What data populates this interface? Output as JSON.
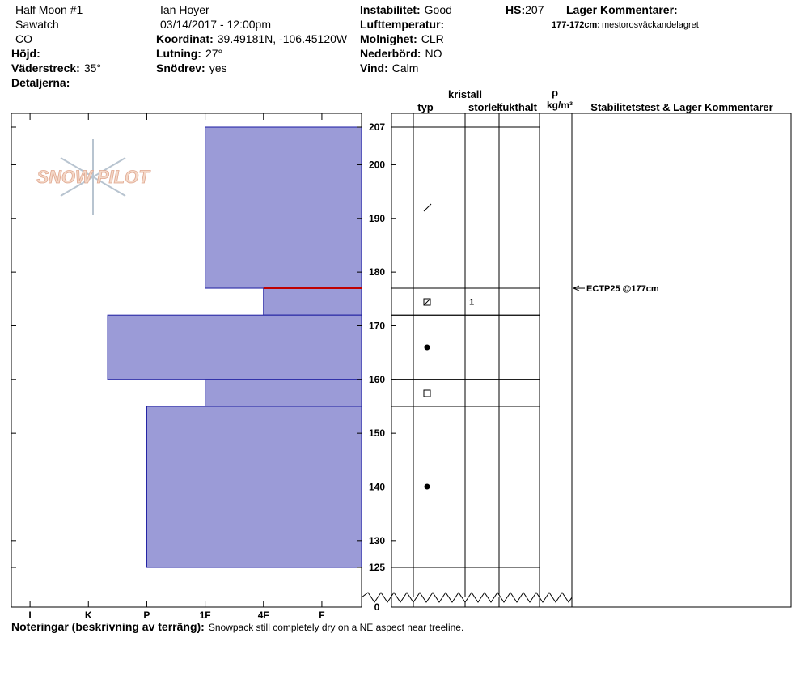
{
  "header": {
    "columns": [
      [
        {
          "value": "Half Moon #1"
        },
        {
          "value": "Sawatch"
        },
        {
          "value": "CO"
        },
        {
          "label": "Höjd:"
        },
        {
          "label": "Väderstreck:",
          "value": "35°"
        },
        {
          "label": "Detaljerna:"
        }
      ],
      [
        {
          "value": "Ian Hoyer"
        },
        {
          "value": "03/14/2017 - 12:00pm"
        },
        {
          "label": "Koordinat:",
          "value": "39.49181N, -106.45120W"
        },
        {
          "label": "Lutning:",
          "value": "27°"
        },
        {
          "label": "Snödrev:",
          "value": "yes"
        }
      ],
      [
        {
          "label": "Instabilitet:",
          "value": "Good"
        },
        {
          "label": "Lufttemperatur:"
        },
        {
          "label": "Molnighet:",
          "value": "CLR"
        },
        {
          "label": "Nederbörd:",
          "value": "NO"
        },
        {
          "label": "Vind:",
          "value": "Calm"
        }
      ],
      [
        {
          "label": "HS:",
          "value": 207
        }
      ]
    ],
    "layer_comments": {
      "title": "Lager Kommentarer:",
      "items": [
        {
          "label": "177-172cm:",
          "value": "mestorosväckandelagret"
        }
      ]
    }
  },
  "logo": "SNOW PILOT",
  "chart_data": {
    "type": "snow-profile",
    "xticks": [
      {
        "value": 1,
        "label": "I"
      },
      {
        "value": 2,
        "label": "K"
      },
      {
        "value": 3,
        "label": "P"
      },
      {
        "value": 4,
        "label": "1F"
      },
      {
        "value": 5,
        "label": "4F"
      },
      {
        "value": 6,
        "label": "F"
      }
    ],
    "xlim": [
      0.68,
      6.68
    ],
    "ylim": [
      125,
      207
    ],
    "axis_break": [
      0,
      125
    ],
    "yticks": [
      0,
      125,
      130,
      140,
      150,
      160,
      170,
      180,
      190,
      200,
      207
    ],
    "color": "#9b9bd7",
    "edge_color": "#1a1aa0",
    "layers": [
      {
        "top": 207,
        "bottom": 177,
        "hardness": 4
      },
      {
        "top": 177,
        "bottom": 172,
        "hardness": 5,
        "size": 1
      },
      {
        "top": 172,
        "bottom": 160,
        "hardness": 2.33
      },
      {
        "top": 160,
        "bottom": 155,
        "hardness": 4
      },
      {
        "top": 155,
        "bottom": 125,
        "hardness": 3
      }
    ],
    "weak_layer": {
      "depth": 177,
      "color": "#c00000"
    },
    "column_headers": {
      "type": "typ",
      "crystal": "kristall",
      "size": "storlek",
      "moisture": "fukthalt",
      "density": "ρ",
      "density_unit": "kg/m³",
      "comments": "Stabilitetstest & Lager Kommentarer"
    },
    "stability_tests": [
      {
        "label": "ECTP25 @177cm",
        "depth": 177
      }
    ],
    "notes": {
      "label": "Noteringar (beskrivning av terräng):",
      "value": "Snowpack still completely dry on a NE aspect near treeline."
    }
  }
}
